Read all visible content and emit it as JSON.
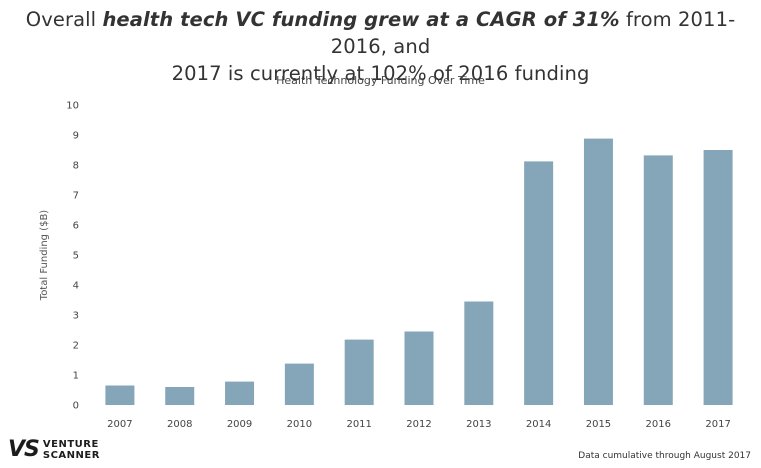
{
  "headline": {
    "part1": "Overall ",
    "emphasis": "health tech VC funding grew at a CAGR of 31%",
    "part2": " from 2011-2016, and",
    "line2": "2017 is currently at 102% of 2016 funding"
  },
  "chart_data": {
    "type": "bar",
    "title": "Health Technology Funding Over Time",
    "xlabel": "",
    "ylabel": "Total Funding ($B)",
    "categories": [
      "2007",
      "2008",
      "2009",
      "2010",
      "2011",
      "2012",
      "2013",
      "2014",
      "2015",
      "2016",
      "2017"
    ],
    "values": [
      0.65,
      0.6,
      0.78,
      1.38,
      2.18,
      2.45,
      3.45,
      8.12,
      8.88,
      8.32,
      8.5
    ],
    "ylim": [
      0,
      10
    ],
    "yticks": [
      0,
      1,
      2,
      3,
      4,
      5,
      6,
      7,
      8,
      9,
      10
    ],
    "grid": false,
    "bar_color": "#85a6b9"
  },
  "logo": {
    "mark": "VS",
    "line1": "VENTURE",
    "line2": "SCANNER"
  },
  "footnote": "Data cumulative through August 2017"
}
